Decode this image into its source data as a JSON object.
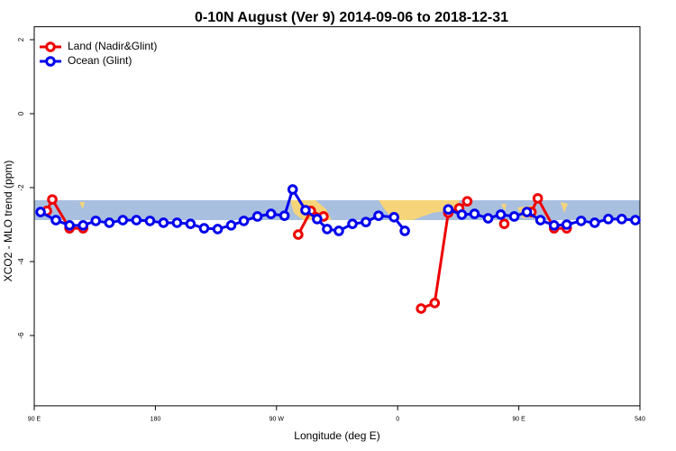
{
  "chart_data": {
    "type": "line",
    "title": "0-10N August (Ver 9)   2014-09-06 to 2018-12-31",
    "x_label": "Longitude (deg E)",
    "y_label": "XCO2 - MLO trend (ppm)",
    "xlim": [
      90,
      540
    ],
    "xticks": [
      {
        "value": 90,
        "label": "90 E"
      },
      180,
      {
        "value": 270,
        "label": "90 W"
      },
      {
        "value": 360,
        "label": "0"
      },
      {
        "value": 450,
        "label": "90 E"
      },
      540
    ],
    "ylim": [
      -7.9,
      2.35
    ],
    "yticks": [
      2,
      0,
      -2,
      -4,
      -6
    ],
    "grid": false,
    "legend": "top-left",
    "series": [
      {
        "name": "Land (Nadir&Glint)",
        "color": "#ee0000",
        "x": [
          99.4,
          103.4,
          116.2,
          126.3,
          null,
          286.1,
          295.5,
          304.9,
          null,
          377.4,
          387.5,
          397.6,
          405.7,
          411.7,
          null,
          439.2,
          null,
          459.4,
          464.1,
          476.2,
          485.6
        ],
        "values": [
          -2.63,
          -2.32,
          -3.1,
          -3.1,
          null,
          -3.27,
          -2.63,
          -2.78,
          null,
          -5.27,
          -5.12,
          -2.68,
          -2.56,
          -2.37,
          null,
          -2.98,
          null,
          -2.66,
          -2.29,
          -3.1,
          -3.1
        ]
      },
      {
        "name": "Ocean (Glint)",
        "color": "#0000ee",
        "x": [
          94.7,
          106.1,
          116.2,
          126.3,
          135.7,
          145.8,
          155.8,
          165.9,
          176,
          186,
          196.1,
          206.1,
          216.2,
          226.3,
          236.3,
          245.7,
          255.8,
          265.9,
          275.9,
          282,
          291.5,
          300.2,
          307.6,
          316.3,
          326.4,
          336.4,
          345.8,
          357.3,
          365.3,
          null,
          397.6,
          407.7,
          417.1,
          427.2,
          436.6,
          446.6,
          456,
          466.1,
          476.2,
          485.6,
          496.3,
          506.4,
          516.5,
          526.5,
          536.6
        ],
        "values": [
          -2.66,
          -2.88,
          -3.02,
          -3.02,
          -2.9,
          -2.95,
          -2.88,
          -2.88,
          -2.9,
          -2.95,
          -2.95,
          -2.98,
          -3.1,
          -3.12,
          -3.02,
          -2.9,
          -2.78,
          -2.71,
          -2.76,
          -2.05,
          -2.61,
          -2.85,
          -3.12,
          -3.17,
          -2.98,
          -2.93,
          -2.76,
          -2.8,
          -3.17,
          null,
          -2.59,
          -2.73,
          -2.71,
          -2.83,
          -2.73,
          -2.78,
          -2.66,
          -2.88,
          -3.02,
          -3,
          -2.9,
          -2.95,
          -2.85,
          -2.85,
          -2.88
        ]
      }
    ]
  }
}
